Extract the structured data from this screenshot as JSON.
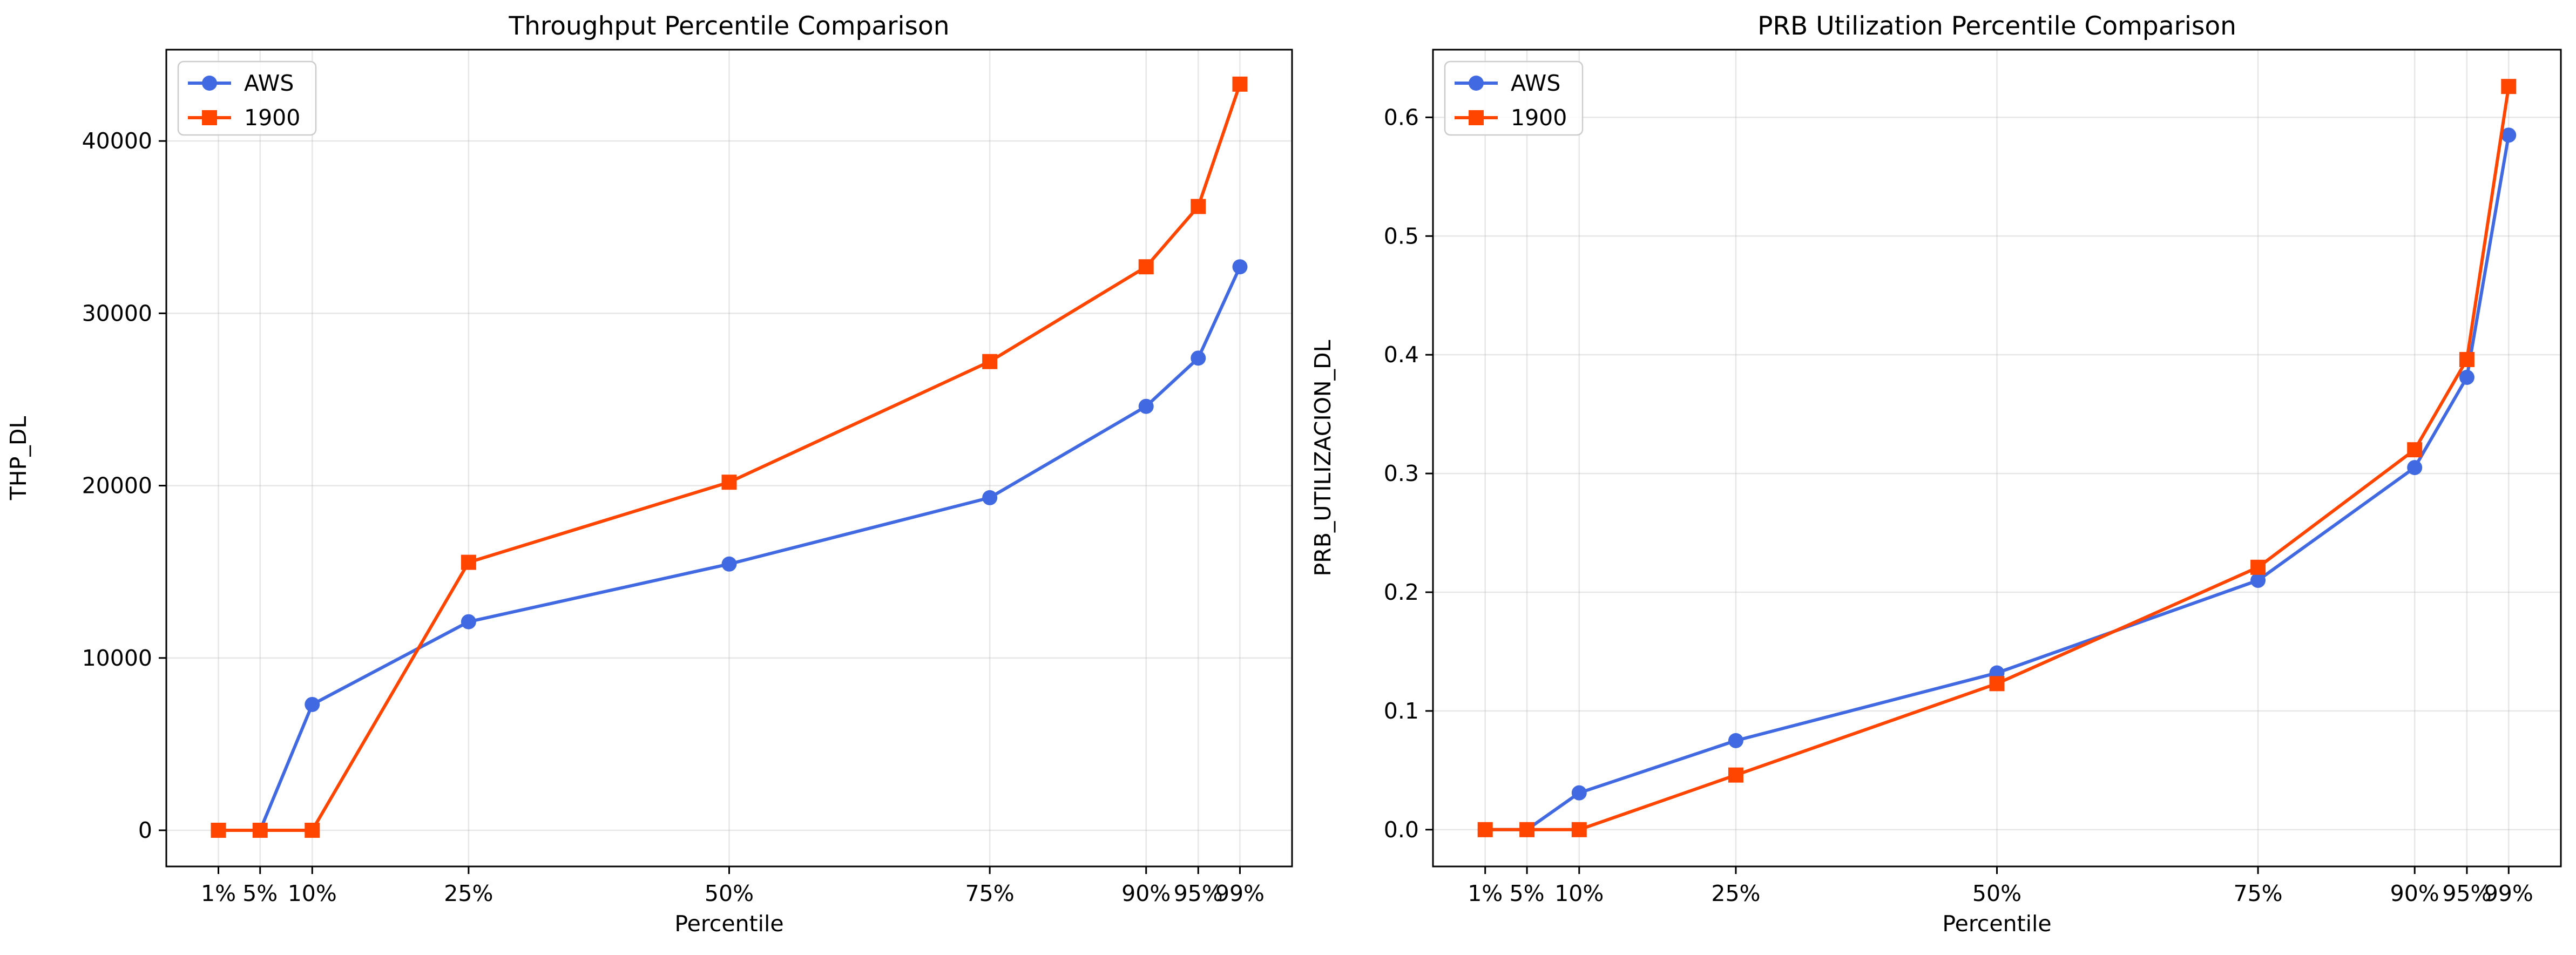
{
  "chart_data": [
    {
      "type": "line",
      "title": "Throughput Percentile Comparison",
      "xlabel": "Percentile",
      "ylabel": "THP_DL",
      "x": [
        1,
        5,
        10,
        25,
        50,
        75,
        90,
        95,
        99
      ],
      "x_tick_labels": [
        "1%",
        "5%",
        "10%",
        "25%",
        "50%",
        "75%",
        "90%",
        "95%",
        "99%"
      ],
      "y_ticks": [
        0,
        10000,
        20000,
        30000,
        40000
      ],
      "y_tick_labels": [
        "0",
        "10000",
        "20000",
        "30000",
        "40000"
      ],
      "xlim": [
        -4,
        104
      ],
      "ylim": [
        -2100,
        45300
      ],
      "grid": true,
      "legend_position": "top-left",
      "series": [
        {
          "name": "AWS",
          "color": "#4169e1",
          "marker": "circle",
          "values": [
            0,
            0,
            7300,
            12100,
            15450,
            19300,
            24600,
            27400,
            32700
          ]
        },
        {
          "name": "1900",
          "color": "#ff4500",
          "marker": "square",
          "values": [
            0,
            0,
            0,
            15550,
            20200,
            27200,
            32700,
            36200,
            43300
          ]
        }
      ]
    },
    {
      "type": "line",
      "title": "PRB Utilization Percentile Comparison",
      "xlabel": "Percentile",
      "ylabel": "PRB_UTILIZACION_DL",
      "x": [
        1,
        5,
        10,
        25,
        50,
        75,
        90,
        95,
        99
      ],
      "x_tick_labels": [
        "1%",
        "5%",
        "10%",
        "25%",
        "50%",
        "75%",
        "90%",
        "95%",
        "99%"
      ],
      "y_ticks": [
        0.0,
        0.1,
        0.2,
        0.3,
        0.4,
        0.5,
        0.6
      ],
      "y_tick_labels": [
        "0.0",
        "0.1",
        "0.2",
        "0.3",
        "0.4",
        "0.5",
        "0.6"
      ],
      "xlim": [
        -4,
        104
      ],
      "ylim": [
        -0.031,
        0.657
      ],
      "grid": true,
      "legend_position": "top-left",
      "series": [
        {
          "name": "AWS",
          "color": "#4169e1",
          "marker": "circle",
          "values": [
            0,
            0,
            0.031,
            0.075,
            0.132,
            0.21,
            0.305,
            0.381,
            0.585
          ]
        },
        {
          "name": "1900",
          "color": "#ff4500",
          "marker": "square",
          "values": [
            0,
            0,
            0,
            0.046,
            0.123,
            0.221,
            0.32,
            0.396,
            0.626
          ]
        }
      ]
    }
  ]
}
